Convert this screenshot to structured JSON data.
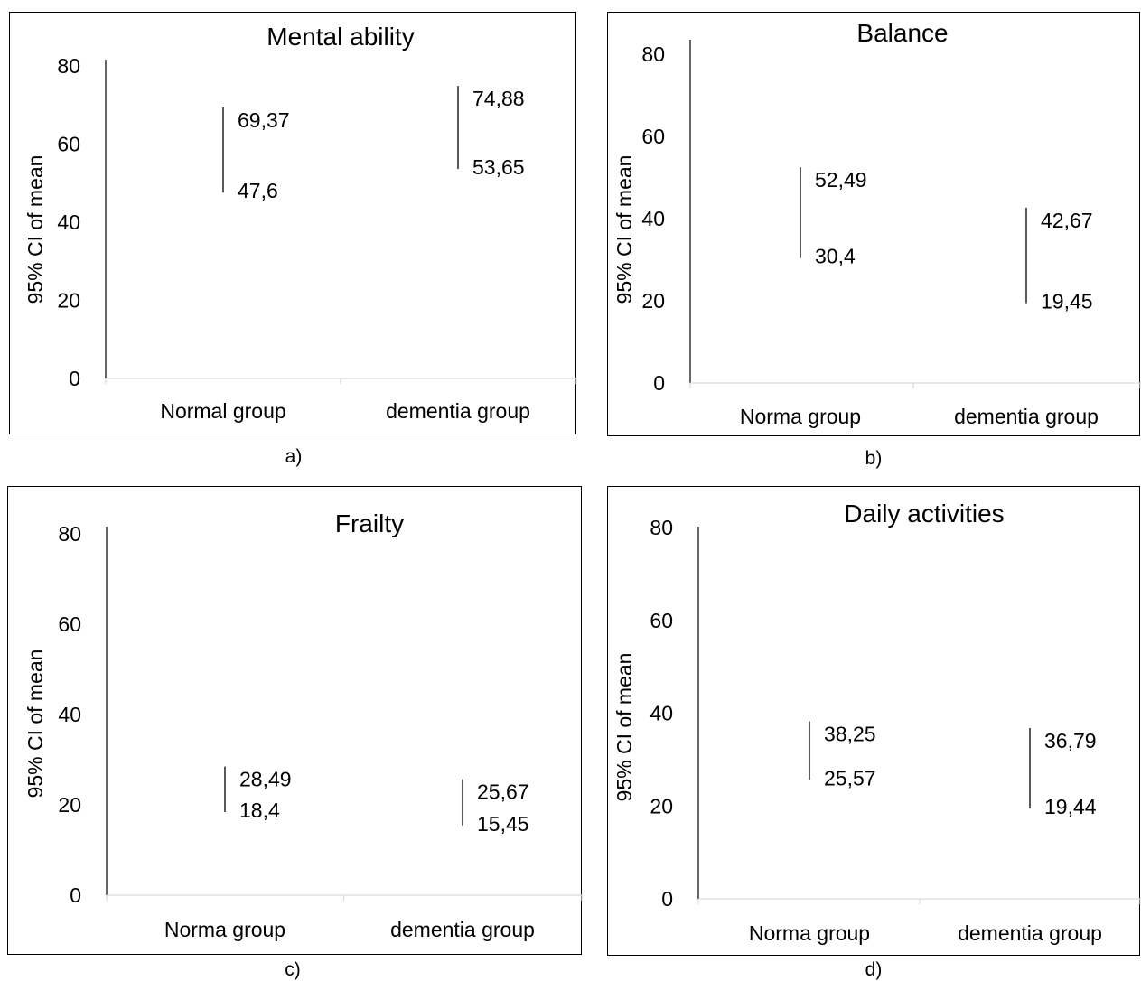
{
  "chart_data": [
    {
      "type": "error-bar",
      "title": "Mental ability",
      "ylabel": "95% CI of mean",
      "xlabel": "",
      "ylim": [
        0,
        80
      ],
      "yticks": [
        "0",
        "20",
        "40",
        "60",
        "80"
      ],
      "categories": [
        "Normal group",
        "dementia group"
      ],
      "intervals": [
        {
          "category": "Normal group",
          "upper": 69.37,
          "lower": 47.6,
          "upper_label": "69,37",
          "lower_label": "47,6"
        },
        {
          "category": "dementia group",
          "upper": 74.88,
          "lower": 53.65,
          "upper_label": "74,88",
          "lower_label": "53,65"
        }
      ],
      "caption": "a)"
    },
    {
      "type": "error-bar",
      "title": "Balance",
      "ylabel": "95% CI of mean",
      "xlabel": "",
      "ylim": [
        0,
        80
      ],
      "yticks": [
        "0",
        "20",
        "40",
        "60",
        "80"
      ],
      "categories": [
        "Norma group",
        "dementia group"
      ],
      "intervals": [
        {
          "category": "Norma group",
          "upper": 52.49,
          "lower": 30.4,
          "upper_label": "52,49",
          "lower_label": "30,4"
        },
        {
          "category": "dementia group",
          "upper": 42.67,
          "lower": 19.45,
          "upper_label": "42,67",
          "lower_label": "19,45"
        }
      ],
      "caption": "b)"
    },
    {
      "type": "error-bar",
      "title": "Frailty",
      "ylabel": "95% CI of mean",
      "xlabel": "",
      "ylim": [
        0,
        80
      ],
      "yticks": [
        "0",
        "20",
        "40",
        "60",
        "80"
      ],
      "categories": [
        "Norma group",
        "dementia group"
      ],
      "intervals": [
        {
          "category": "Norma group",
          "upper": 28.49,
          "lower": 18.4,
          "upper_label": "28,49",
          "lower_label": "18,4"
        },
        {
          "category": "dementia group",
          "upper": 25.67,
          "lower": 15.45,
          "upper_label": "25,67",
          "lower_label": "15,45"
        }
      ],
      "caption": "c)"
    },
    {
      "type": "error-bar",
      "title": "Daily activities",
      "ylabel": "95% CI of mean",
      "xlabel": "",
      "ylim": [
        0,
        80
      ],
      "yticks": [
        "0",
        "20",
        "40",
        "60",
        "80"
      ],
      "categories": [
        "Norma group",
        "dementia group"
      ],
      "intervals": [
        {
          "category": "Norma group",
          "upper": 38.25,
          "lower": 25.57,
          "upper_label": "38,25",
          "lower_label": "25,57"
        },
        {
          "category": "dementia group",
          "upper": 36.79,
          "lower": 19.44,
          "upper_label": "36,79",
          "lower_label": "19,44"
        }
      ],
      "caption": "d)"
    }
  ]
}
